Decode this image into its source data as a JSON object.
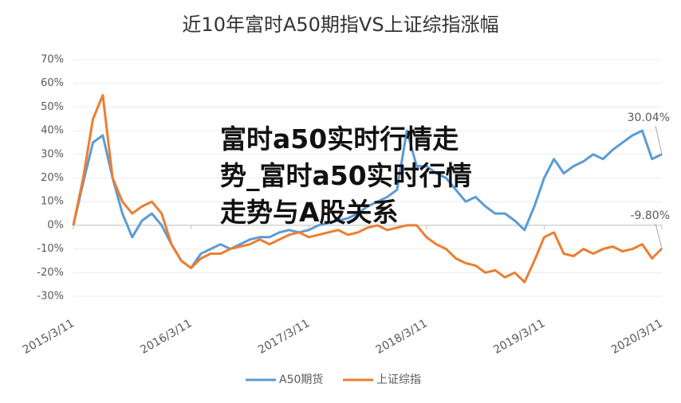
{
  "chart_data": {
    "type": "line",
    "title": "近10年富时A50期指VS上证综指涨幅",
    "overlay_text": "富时a50实时行情走势_富时a50实时行情走势与A股关系",
    "categories": [
      "2015/3/11",
      null,
      null,
      null,
      null,
      null,
      null,
      null,
      null,
      null,
      null,
      null,
      "2016/3/11",
      null,
      null,
      null,
      null,
      null,
      null,
      null,
      null,
      null,
      null,
      null,
      "2017/3/11",
      null,
      null,
      null,
      null,
      null,
      null,
      null,
      null,
      null,
      null,
      null,
      "2018/3/11",
      null,
      null,
      null,
      null,
      null,
      null,
      null,
      null,
      null,
      null,
      null,
      "2019/3/11",
      null,
      null,
      null,
      null,
      null,
      null,
      null,
      null,
      null,
      null,
      null,
      "2020/3/11"
    ],
    "series": [
      {
        "name": "A50期货",
        "color": "#5b9bd5",
        "values": [
          0,
          18,
          35,
          38,
          20,
          5,
          -5,
          2,
          5,
          0,
          -8,
          -15,
          -18,
          -12,
          -10,
          -8,
          -10,
          -8,
          -6,
          -5,
          -5,
          -3,
          -2,
          -3,
          -2,
          0,
          1,
          2,
          3,
          5,
          8,
          10,
          12,
          15,
          40,
          25,
          25,
          22,
          20,
          15,
          10,
          12,
          8,
          5,
          5,
          2,
          -2,
          8,
          20,
          28,
          22,
          25,
          27,
          30,
          28,
          32,
          35,
          38,
          40,
          28,
          30.04
        ],
        "value_labels": [
          null,
          null,
          null,
          null,
          null,
          null,
          null,
          null,
          null,
          null,
          null,
          null,
          null,
          null,
          null,
          null,
          null,
          null,
          null,
          null,
          null,
          null,
          null,
          null,
          null,
          null,
          null,
          null,
          null,
          null,
          null,
          null,
          null,
          null,
          null,
          null,
          null,
          null,
          null,
          null,
          null,
          null,
          null,
          null,
          null,
          null,
          null,
          null,
          null,
          null,
          null,
          null,
          null,
          null,
          null,
          null,
          null,
          null,
          null,
          null,
          "30.04%"
        ]
      },
      {
        "name": "上证综指",
        "color": "#ed7d31",
        "values": [
          0,
          20,
          45,
          55,
          20,
          10,
          5,
          8,
          10,
          5,
          -8,
          -15,
          -18,
          -14,
          -12,
          -12,
          -10,
          -9,
          -8,
          -6,
          -8,
          -6,
          -4,
          -3,
          -5,
          -4,
          -3,
          -2,
          -4,
          -3,
          -1,
          0,
          -2,
          -1,
          0,
          0,
          -5,
          -8,
          -10,
          -14,
          -16,
          -17,
          -20,
          -19,
          -22,
          -20,
          -24,
          -15,
          -5,
          -3,
          -12,
          -13,
          -10,
          -12,
          -10,
          -9,
          -11,
          -10,
          -8,
          -14,
          -9.8
        ],
        "value_labels": [
          null,
          null,
          null,
          null,
          null,
          null,
          null,
          null,
          null,
          null,
          null,
          null,
          null,
          null,
          null,
          null,
          null,
          null,
          null,
          null,
          null,
          null,
          null,
          null,
          null,
          null,
          null,
          null,
          null,
          null,
          null,
          null,
          null,
          null,
          null,
          null,
          null,
          null,
          null,
          null,
          null,
          null,
          null,
          null,
          null,
          null,
          null,
          null,
          null,
          null,
          null,
          null,
          null,
          null,
          null,
          null,
          null,
          null,
          null,
          null,
          "-9.80%"
        ]
      }
    ],
    "ylim": [
      -30,
      70
    ],
    "yticks": [
      {
        "value": -30,
        "label": "-30%"
      },
      {
        "value": -20,
        "label": "-20%"
      },
      {
        "value": -10,
        "label": "-10%"
      },
      {
        "value": 0,
        "label": "0%"
      },
      {
        "value": 10,
        "label": "10%"
      },
      {
        "value": 20,
        "label": "20%"
      },
      {
        "value": 30,
        "label": "30%"
      },
      {
        "value": 40,
        "label": "40%"
      },
      {
        "value": 50,
        "label": "50%"
      },
      {
        "value": 60,
        "label": "60%"
      },
      {
        "value": 70,
        "label": "70%"
      }
    ],
    "grid": true,
    "legend": "bottom"
  }
}
